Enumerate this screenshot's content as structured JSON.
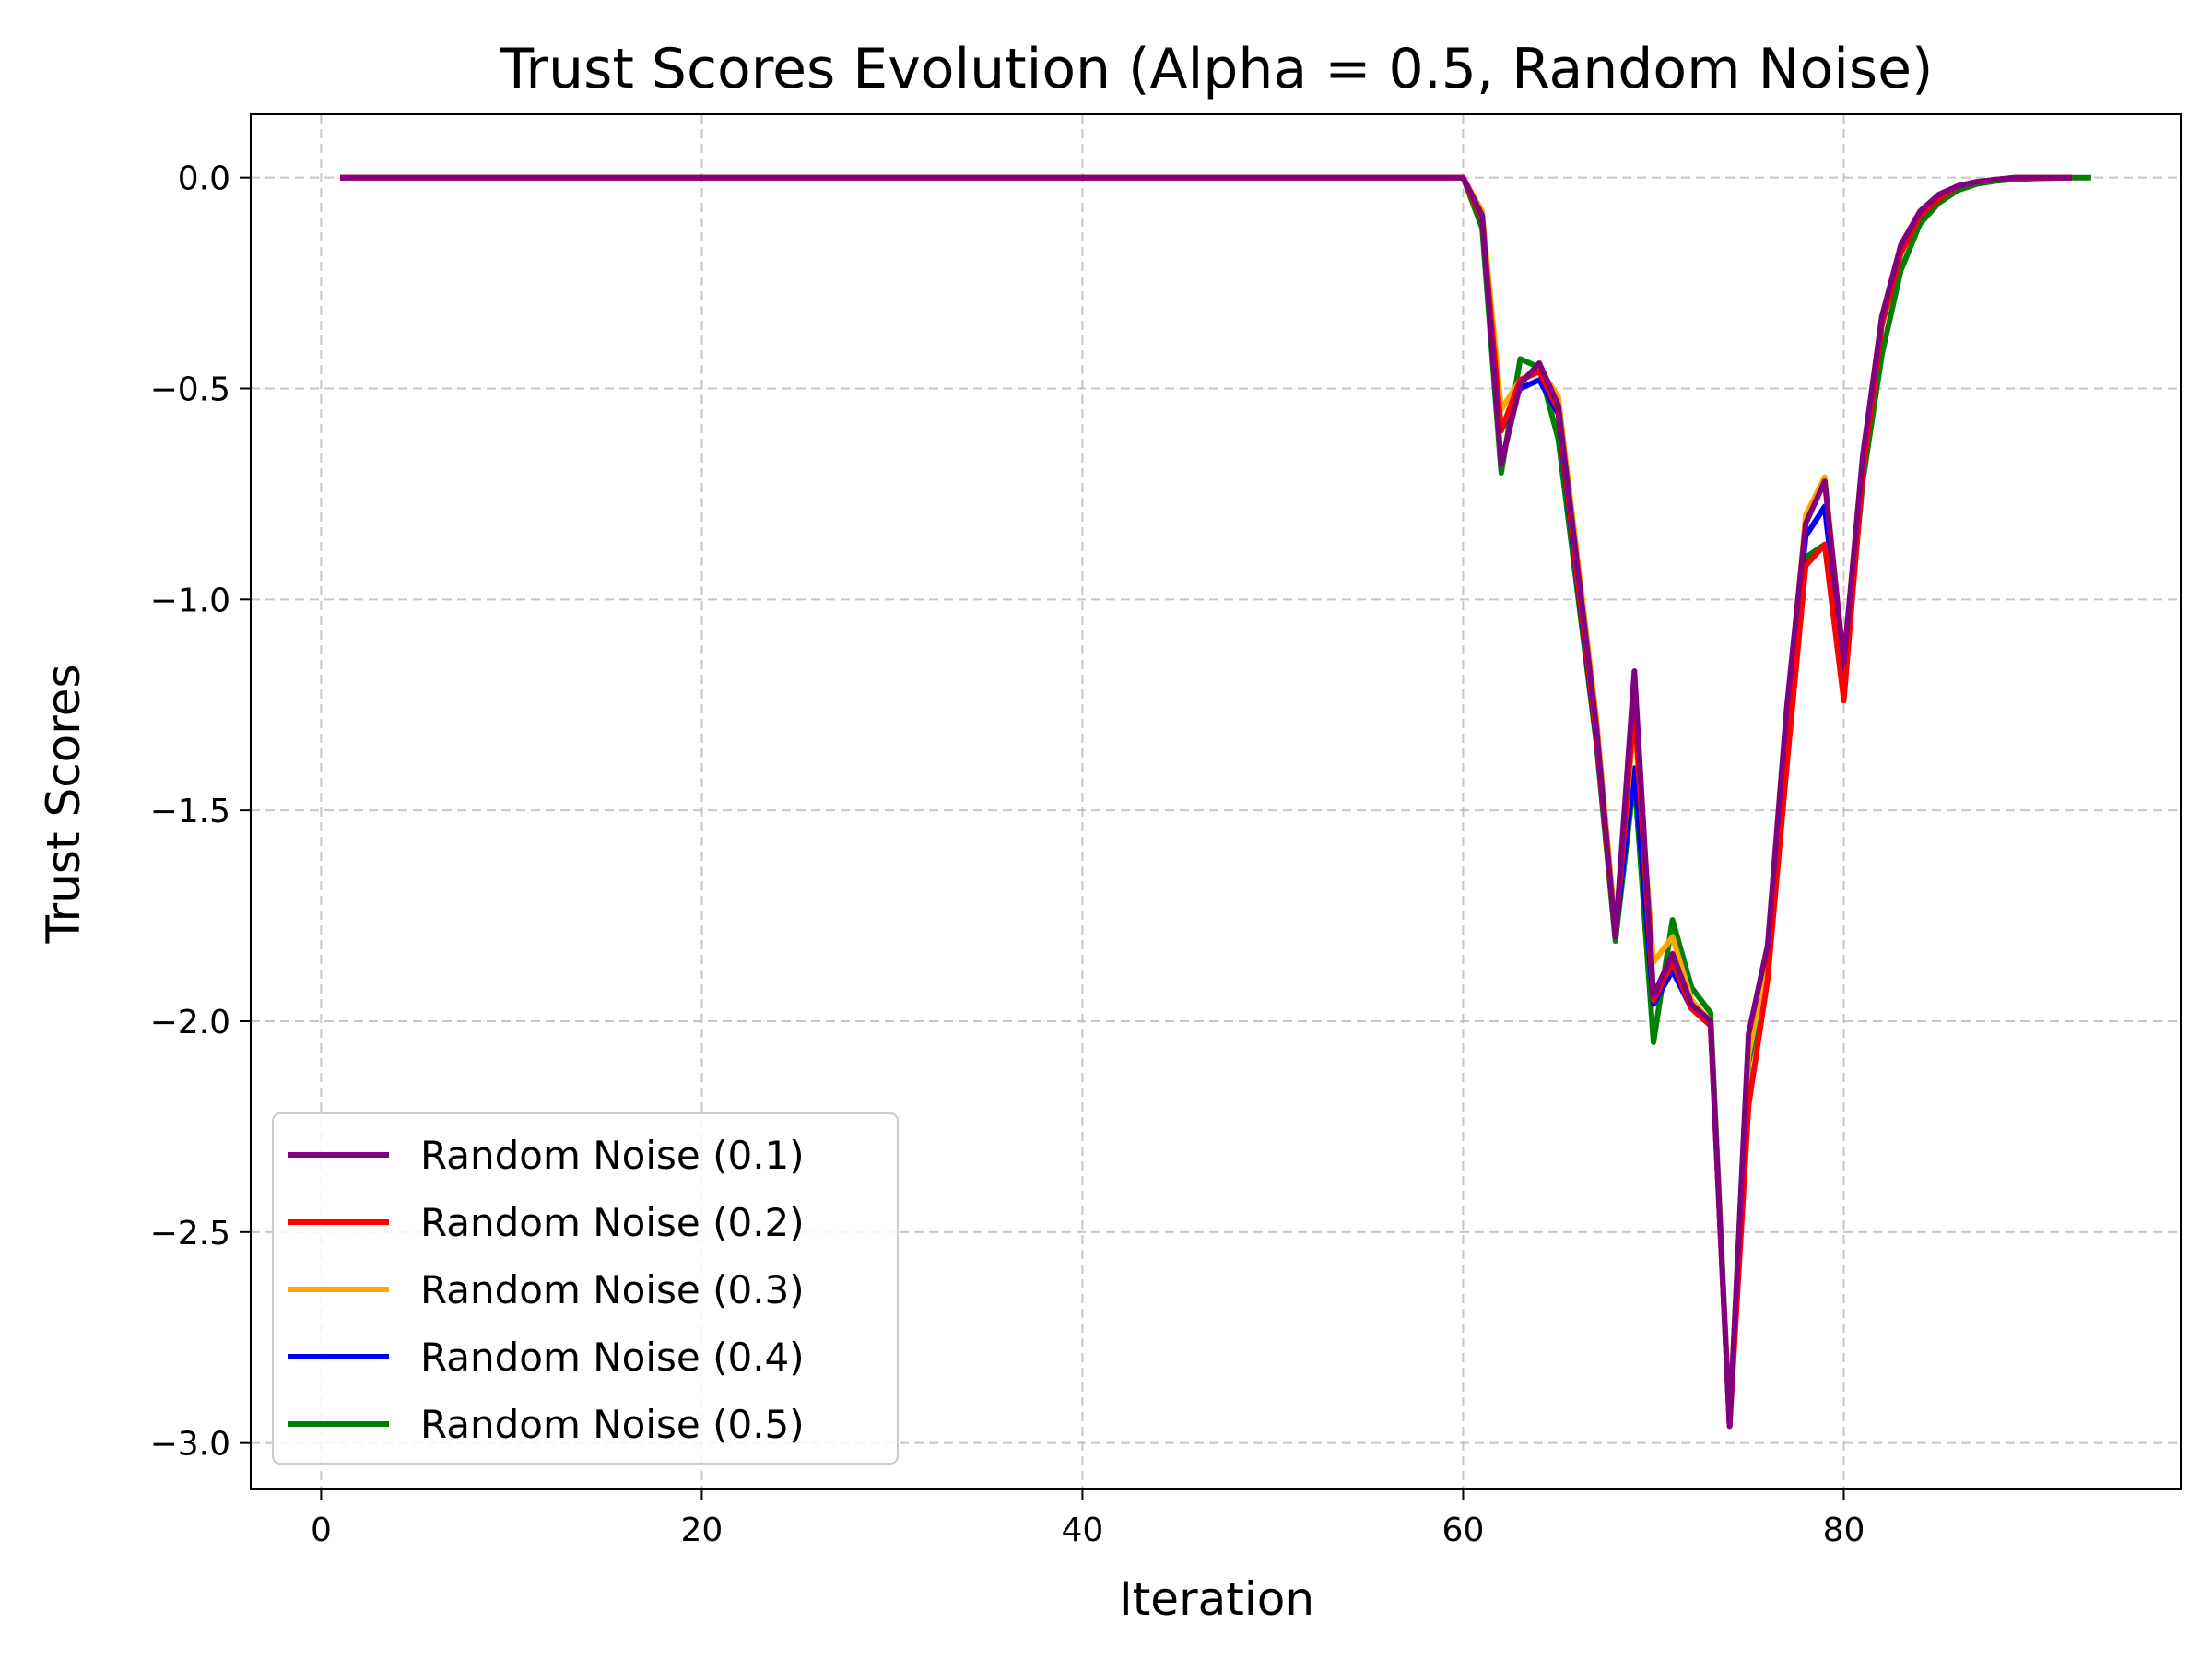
{
  "chart_data": {
    "type": "line",
    "title": "Trust Scores Evolution (Alpha = 0.5, Random Noise)",
    "xlabel": "Iteration",
    "ylabel": "Trust Scores",
    "xlim": [
      -3.7,
      97.7
    ],
    "ylim": [
      -3.11,
      0.15
    ],
    "xticks": [
      0,
      20,
      40,
      60,
      80
    ],
    "yticks": [
      0.0,
      -0.5,
      -1.0,
      -1.5,
      -2.0,
      -2.5,
      -3.0
    ],
    "xtick_labels": [
      "0",
      "20",
      "40",
      "60",
      "80"
    ],
    "ytick_labels": [
      "0.0",
      "−0.5",
      "−1.0",
      "−1.5",
      "−2.0",
      "−2.5",
      "−3.0"
    ],
    "grid": true,
    "legend_position": "lower-left",
    "series": [
      {
        "name": "Random Noise (0.1)",
        "color": "#800080",
        "x": [
          1,
          60,
          61,
          62,
          63,
          64,
          65,
          66,
          67,
          68,
          69,
          70,
          71,
          72,
          73,
          74,
          75,
          76,
          77,
          78,
          79,
          80,
          81,
          82,
          83,
          84,
          85,
          86,
          87,
          88,
          89,
          90,
          91,
          92
        ],
        "y": [
          0,
          0,
          -0.09,
          -0.68,
          -0.49,
          -0.44,
          -0.54,
          -0.92,
          -1.3,
          -1.8,
          -1.17,
          -1.94,
          -1.84,
          -1.96,
          -2.0,
          -2.96,
          -2.03,
          -1.82,
          -1.26,
          -0.82,
          -0.72,
          -1.15,
          -0.66,
          -0.33,
          -0.16,
          -0.08,
          -0.04,
          -0.02,
          -0.01,
          -0.005,
          0,
          0,
          0,
          0
        ]
      },
      {
        "name": "Random Noise (0.2)",
        "color": "#ff0000",
        "x": [
          1,
          60,
          61,
          62,
          63,
          64,
          65,
          66,
          67,
          68,
          69,
          70,
          71,
          72,
          73,
          74,
          75,
          76,
          77,
          78,
          79,
          80,
          81,
          82,
          83,
          84,
          85,
          86,
          87,
          88,
          89,
          90,
          91,
          92
        ],
        "y": [
          0,
          0,
          -0.1,
          -0.6,
          -0.48,
          -0.46,
          -0.55,
          -0.95,
          -1.32,
          -1.8,
          -1.25,
          -1.95,
          -1.86,
          -1.97,
          -2.01,
          -2.96,
          -2.2,
          -1.9,
          -1.4,
          -0.92,
          -0.87,
          -1.24,
          -0.7,
          -0.35,
          -0.18,
          -0.09,
          -0.05,
          -0.02,
          -0.01,
          -0.005,
          0,
          0,
          0,
          0
        ]
      },
      {
        "name": "Random Noise (0.3)",
        "color": "#ffa500",
        "x": [
          1,
          60,
          61,
          62,
          63,
          64,
          65,
          66,
          67,
          68,
          69,
          70,
          71,
          72,
          73,
          74,
          75,
          76,
          77,
          78,
          79,
          80,
          81,
          82,
          83,
          84,
          85,
          86,
          87,
          88,
          89,
          90,
          91,
          92
        ],
        "y": [
          0,
          0,
          -0.08,
          -0.55,
          -0.48,
          -0.45,
          -0.52,
          -0.9,
          -1.28,
          -1.78,
          -1.28,
          -1.86,
          -1.8,
          -1.95,
          -2.0,
          -2.95,
          -2.08,
          -1.85,
          -1.3,
          -0.8,
          -0.71,
          -1.15,
          -0.66,
          -0.33,
          -0.16,
          -0.08,
          -0.04,
          -0.02,
          -0.01,
          -0.005,
          0,
          0,
          0,
          0
        ]
      },
      {
        "name": "Random Noise (0.4)",
        "color": "#0000ff",
        "x": [
          1,
          60,
          61,
          62,
          63,
          64,
          65,
          66,
          67,
          68,
          69,
          70,
          71,
          72,
          73,
          74,
          75,
          76,
          77,
          78,
          79,
          80,
          81,
          82,
          83,
          84,
          85,
          86,
          87,
          88,
          89,
          90,
          91,
          92
        ],
        "y": [
          0,
          0,
          -0.1,
          -0.6,
          -0.5,
          -0.48,
          -0.56,
          -0.96,
          -1.33,
          -1.79,
          -1.4,
          -1.96,
          -1.88,
          -1.97,
          -2.01,
          -2.96,
          -2.05,
          -1.84,
          -1.28,
          -0.85,
          -0.78,
          -1.18,
          -0.68,
          -0.34,
          -0.17,
          -0.09,
          -0.05,
          -0.02,
          -0.01,
          -0.005,
          0,
          0,
          0,
          0
        ]
      },
      {
        "name": "Random Noise (0.5)",
        "color": "#008000",
        "x": [
          1,
          60,
          61,
          62,
          63,
          64,
          65,
          66,
          67,
          68,
          69,
          70,
          71,
          72,
          73,
          74,
          75,
          76,
          77,
          78,
          79,
          80,
          81,
          82,
          83,
          84,
          85,
          86,
          87,
          88,
          89,
          90,
          91,
          92,
          93
        ],
        "y": [
          0,
          0,
          -0.12,
          -0.7,
          -0.43,
          -0.45,
          -0.62,
          -0.98,
          -1.34,
          -1.81,
          -1.42,
          -2.05,
          -1.76,
          -1.92,
          -1.98,
          -2.95,
          -2.1,
          -1.86,
          -1.3,
          -0.9,
          -0.87,
          -1.2,
          -0.72,
          -0.42,
          -0.22,
          -0.11,
          -0.06,
          -0.03,
          -0.015,
          -0.008,
          -0.004,
          -0.002,
          -0.001,
          0,
          0
        ]
      }
    ]
  }
}
